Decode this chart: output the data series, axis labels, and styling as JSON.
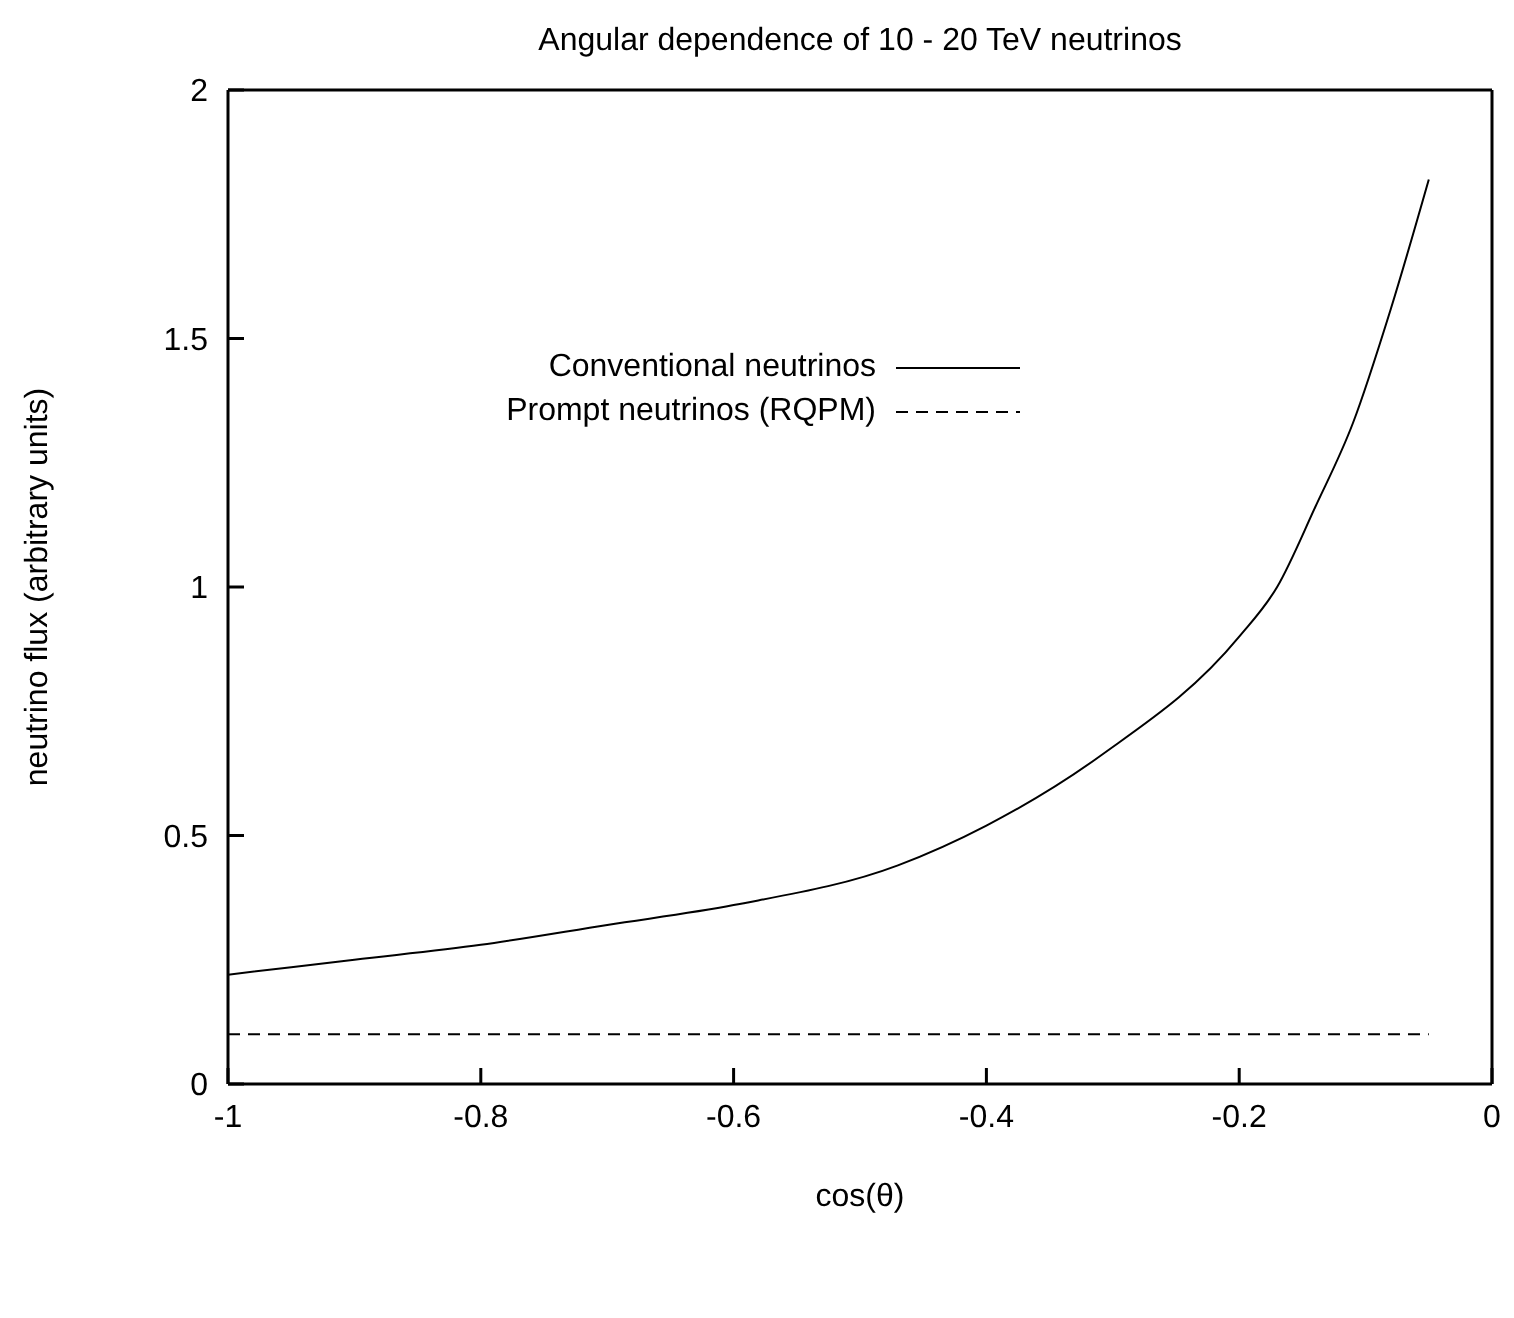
{
  "chart_data": {
    "type": "line",
    "title": "Angular dependence of 10 - 20 TeV neutrinos",
    "xlabel": "cos(θ)",
    "ylabel": "neutrino flux (arbitrary units)",
    "xlim": [
      -1,
      0
    ],
    "xticks": [
      -1,
      -0.8,
      -0.6,
      -0.4,
      -0.2,
      0
    ],
    "ylim": [
      0,
      2
    ],
    "yticks": [
      0,
      0.5,
      1,
      1.5,
      2
    ],
    "legend": "top left",
    "marker": "none",
    "series": [
      {
        "name": "Conventional neutrinos",
        "color": "#000000",
        "line_style": "solid",
        "x": [
          -1,
          -0.9,
          -0.8,
          -0.7,
          -0.6,
          -0.47,
          -0.4,
          -0.31,
          -0.2,
          -0.17,
          -0.14,
          -0.11,
          -0.08,
          -0.05
        ],
        "values": [
          0.22,
          0.25,
          0.28,
          0.32,
          0.36,
          0.44,
          0.52,
          0.66,
          0.9,
          1.0,
          1.16,
          1.33,
          1.56,
          1.82
        ]
      },
      {
        "name": "Prompt neutrinos (RQPM)",
        "color": "#000000",
        "line_style": "dashed",
        "x": [
          -1,
          -0.05
        ],
        "values": [
          0.1,
          0.1
        ]
      }
    ]
  }
}
